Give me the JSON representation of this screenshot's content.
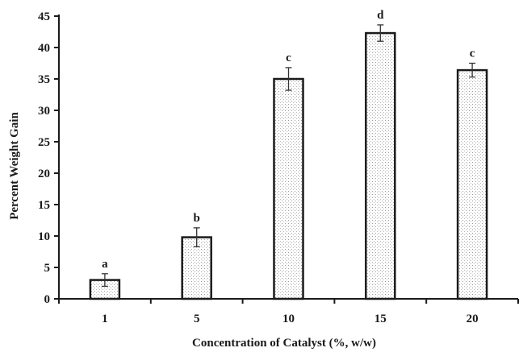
{
  "chart_data": {
    "type": "bar",
    "title": "",
    "xlabel": "Concentration of Catalyst (%, w/w)",
    "ylabel": "Percent Weight Gain",
    "categories": [
      "1",
      "5",
      "10",
      "15",
      "20"
    ],
    "values": [
      3.0,
      9.8,
      35.0,
      42.3,
      36.4
    ],
    "errors": [
      1.0,
      1.5,
      1.8,
      1.3,
      1.1
    ],
    "significance_labels": [
      "a",
      "b",
      "c",
      "d",
      "c"
    ],
    "ylim": [
      0,
      45
    ],
    "yticks": [
      "0",
      "5",
      "10",
      "15",
      "20",
      "25",
      "30",
      "35",
      "40",
      "45"
    ],
    "grid": false,
    "legend": "none",
    "bar_fill": "dotted-gray",
    "colors": {
      "bar_edge": "#1a1a1a",
      "bar_dots": "#9a9a9a",
      "text": "#1a1a1a"
    }
  }
}
